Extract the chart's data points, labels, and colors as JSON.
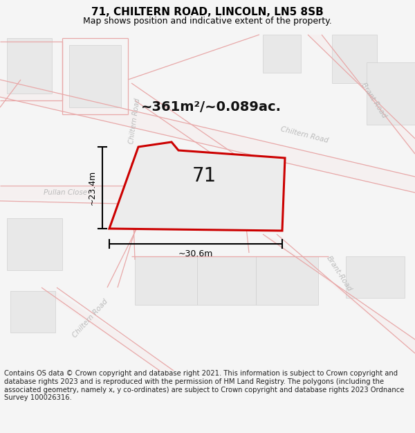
{
  "title": "71, CHILTERN ROAD, LINCOLN, LN5 8SB",
  "subtitle": "Map shows position and indicative extent of the property.",
  "footer": "Contains OS data © Crown copyright and database right 2021. This information is subject to Crown copyright and database rights 2023 and is reproduced with the permission of HM Land Registry. The polygons (including the associated geometry, namely x, y co-ordinates) are subject to Crown copyright and database rights 2023 Ordnance Survey 100026316.",
  "area_text": "~361m²/~0.089ac.",
  "label_71": "71",
  "dim_width": "~30.6m",
  "dim_height": "~23.4m",
  "bg_color": "#f5f5f5",
  "map_bg": "#ffffff",
  "road_stroke": "#e8a8a8",
  "property_fill": "#ececec",
  "property_stroke": "#cc0000",
  "road_label_color": "#bbbbbb",
  "dim_color": "#000000",
  "title_fontsize": 11,
  "subtitle_fontsize": 9,
  "footer_fontsize": 7.2,
  "title_color": "#000000",
  "block_color": "#e8e8e8",
  "block_edge": "#d0d0d0"
}
